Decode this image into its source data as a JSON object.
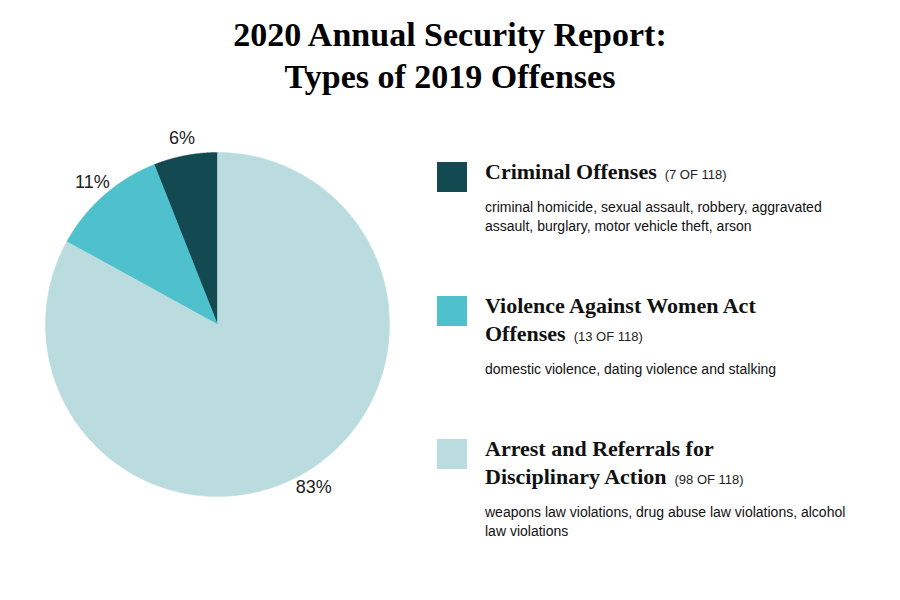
{
  "chart_data": {
    "type": "pie",
    "title": "2020 Annual Security Report: Types of 2019 Offenses",
    "categories": [
      "Criminal Offenses",
      "Violence Against Women Act Offenses",
      "Arrest and Referrals for Disciplinary Action"
    ],
    "values": [
      6,
      11,
      83
    ],
    "value_labels": [
      "6%",
      "11%",
      "83%"
    ],
    "colors": [
      "#134a52",
      "#4fc1cc",
      "#badcdf"
    ],
    "data_labels": true,
    "legend": "right",
    "count_labels": [
      "(7 OF 118)",
      "(13 OF 118)",
      "(98 OF 118)"
    ],
    "descriptions": [
      "criminal homicide, sexual assault, robbery, aggravated assault, burglary, motor vehicle theft, arson",
      "domestic violence, dating violence and stalking",
      "weapons law violations, drug abuse law violations, alcohol law violations"
    ]
  }
}
